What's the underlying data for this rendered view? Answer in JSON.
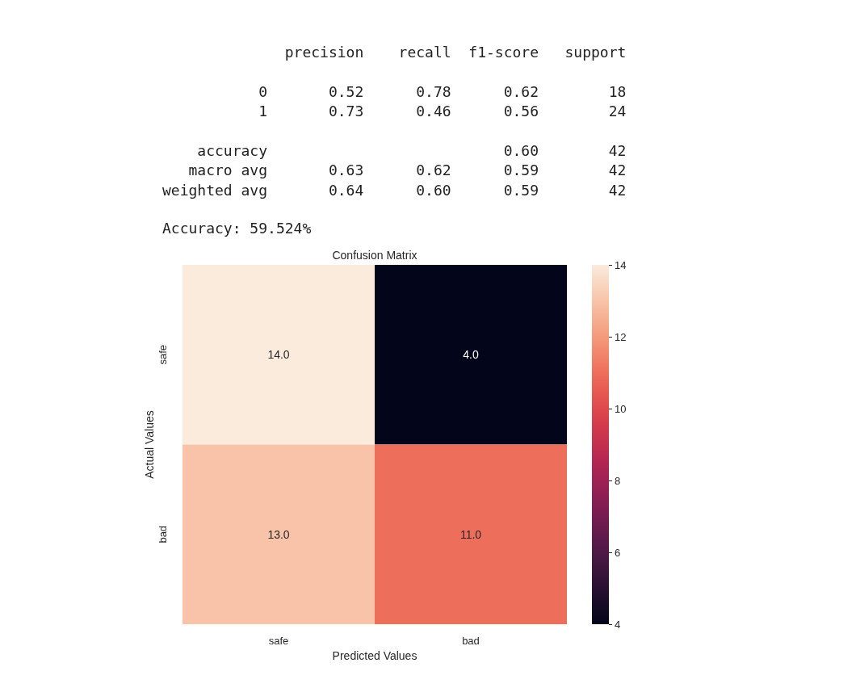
{
  "chart_data": {
    "type": "heatmap",
    "title": "Confusion Matrix",
    "xlabel": "Predicted Values",
    "ylabel": "Actual Values",
    "annotations": [
      "              precision    recall  f1-score   support\n\n           0       0.52      0.78      0.62        18\n           1       0.73      0.46      0.56        24\n\n    accuracy                           0.60        42\n   macro avg       0.63      0.62      0.59        42\nweighted avg       0.64      0.60      0.59        42",
      "Accuracy: 59.524%"
    ],
    "categories": [
      "safe",
      "bad"
    ],
    "y_categories": [
      "safe",
      "bad"
    ],
    "cells": [
      [
        14,
        4
      ],
      [
        13,
        11
      ]
    ],
    "cell_labels": [
      [
        "14.0",
        "4.0"
      ],
      [
        "13.0",
        "11.0"
      ]
    ],
    "clim": [
      4,
      14
    ],
    "cticks": [
      4,
      6,
      8,
      10,
      12,
      14
    ]
  }
}
